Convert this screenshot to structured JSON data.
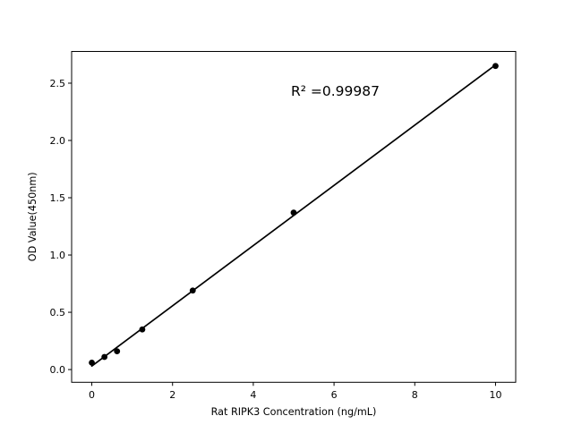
{
  "chart_data": {
    "type": "scatter",
    "title": "",
    "xlabel": "Rat RIPK3 Concentration (ng/mL)",
    "ylabel": "OD Value(450nm)",
    "annotation": "R² =0.99987",
    "r_squared": 0.99987,
    "x": [
      0,
      0.3125,
      0.625,
      1.25,
      2.5,
      5,
      10
    ],
    "y": [
      0.06,
      0.11,
      0.16,
      0.35,
      0.69,
      1.37,
      2.65
    ],
    "fit_line": true,
    "xticks": {
      "values": [
        0,
        2,
        4,
        6,
        8,
        10
      ],
      "labels": [
        "0",
        "2",
        "4",
        "6",
        "8",
        "10"
      ]
    },
    "yticks": {
      "values": [
        0,
        0.5,
        1.0,
        1.5,
        2.0,
        2.5
      ],
      "labels": [
        "0.0",
        "0.5",
        "1.0",
        "1.5",
        "2.0",
        "2.5"
      ]
    },
    "xlim": [
      -0.5,
      10.5
    ],
    "ylim": [
      -0.111,
      2.777
    ],
    "grid": false,
    "legend": null,
    "colors": {
      "marker": "#000000",
      "line": "#000000",
      "text": "#000000",
      "spine": "#000000",
      "background": "#ffffff"
    }
  }
}
